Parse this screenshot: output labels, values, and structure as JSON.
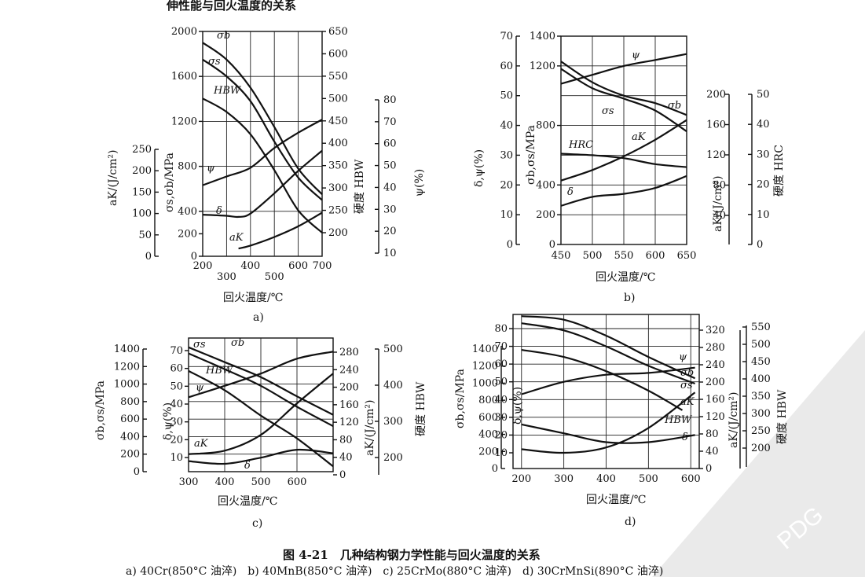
{
  "header": {
    "partial_title": "伸性能与回火温度的关系"
  },
  "caption": {
    "title": "图 4-21　几种结构钢力学性能与回火温度的关系",
    "subtitle": "a) 40Cr(850°C 油淬)　b) 40MnB(850°C 油淬)　c) 25CrMo(880°C 油淬)　d) 30CrMnSi(890°C 油淬)"
  },
  "watermark": {
    "text": "PDG"
  },
  "chart_data": [
    {
      "id": "a",
      "type": "line",
      "sublabel": "a)",
      "xlabel": "回火温度/℃",
      "xlim": [
        200,
        700
      ],
      "xticks_row1": [
        "200",
        "400",
        "600",
        "700"
      ],
      "xticks_row2": [
        "300",
        "500"
      ],
      "axes": [
        {
          "label": "σs,σb/MPa",
          "ticks": [
            "0",
            "200",
            "400",
            "800",
            "1200",
            "1600",
            "2000"
          ]
        },
        {
          "label": "aK/(J/cm²)",
          "ticks": [
            "0",
            "50",
            "100",
            "150",
            "200",
            "250"
          ]
        },
        {
          "label": "硬度 HBW",
          "ticks": [
            "200",
            "250",
            "300",
            "350",
            "400",
            "450",
            "500",
            "550",
            "600",
            "650"
          ]
        },
        {
          "label": "ψ(%)",
          "ticks": [
            "10",
            "20",
            "30",
            "40",
            "50",
            "60",
            "70",
            "80"
          ]
        }
      ],
      "series": [
        {
          "name": "σb",
          "axis": "MPa",
          "x": [
            200,
            300,
            400,
            500,
            600,
            700
          ],
          "y": [
            1900,
            1750,
            1500,
            1150,
            780,
            550
          ]
        },
        {
          "name": "σs",
          "axis": "MPa",
          "x": [
            200,
            300,
            400,
            500,
            600,
            700
          ],
          "y": [
            1750,
            1600,
            1380,
            1020,
            700,
            500
          ]
        },
        {
          "name": "HBW",
          "axis": "HBW",
          "x": [
            200,
            300,
            400,
            500,
            600,
            700
          ],
          "y": [
            500,
            470,
            420,
            340,
            250,
            200
          ]
        },
        {
          "name": "ψ",
          "axis": "psi",
          "x": [
            200,
            300,
            400,
            500,
            600,
            700
          ],
          "y": [
            41,
            45,
            49,
            58,
            65,
            71
          ]
        },
        {
          "name": "δ",
          "axis": "MPa",
          "x": [
            200,
            300,
            350,
            400,
            500,
            600,
            700
          ],
          "y": [
            370,
            360,
            350,
            380,
            560,
            760,
            940
          ]
        },
        {
          "name": "aK",
          "axis": "aK",
          "x": [
            350,
            400,
            500,
            600,
            700
          ],
          "y": [
            18,
            25,
            45,
            70,
            102
          ]
        }
      ]
    },
    {
      "id": "b",
      "type": "line",
      "sublabel": "b)",
      "xlabel": "回火温度/℃",
      "xlim": [
        450,
        650
      ],
      "xticks": [
        "450",
        "500",
        "550",
        "600",
        "650"
      ],
      "axes": [
        {
          "label": "δ,ψ(%)",
          "ticks": [
            "0",
            "10",
            "20",
            "30",
            "40",
            "50",
            "60",
            "70"
          ]
        },
        {
          "label": "σb,σs/MPa",
          "ticks": [
            "0",
            "200",
            "400",
            "800",
            "1200",
            "1400"
          ]
        },
        {
          "label": "aK/(J/cm²)",
          "ticks": [
            "40",
            "80",
            "120",
            "160",
            "200"
          ]
        },
        {
          "label": "硬度 HRC",
          "ticks": [
            "0",
            "10",
            "20",
            "30",
            "40",
            "50"
          ]
        }
      ],
      "series": [
        {
          "name": "ψ",
          "axis": "pct",
          "x": [
            450,
            500,
            550,
            600,
            650
          ],
          "y": [
            54,
            57,
            60,
            62,
            64
          ]
        },
        {
          "name": "σs",
          "axis": "MPa",
          "x": [
            450,
            500,
            550,
            600,
            650
          ],
          "y": [
            1180,
            1050,
            980,
            900,
            760
          ]
        },
        {
          "name": "σb",
          "axis": "MPa",
          "x": [
            450,
            500,
            550,
            600,
            650
          ],
          "y": [
            1230,
            1090,
            1000,
            950,
            870
          ]
        },
        {
          "name": "aK",
          "axis": "aK",
          "x": [
            450,
            500,
            550,
            600,
            650
          ],
          "y": [
            86,
            100,
            118,
            140,
            166
          ]
        },
        {
          "name": "HRC",
          "axis": "pct",
          "x": [
            450,
            500,
            550,
            600,
            650
          ],
          "y": [
            30.5,
            30,
            29,
            27,
            26
          ]
        },
        {
          "name": "δ",
          "axis": "pct",
          "x": [
            450,
            500,
            550,
            600,
            650
          ],
          "y": [
            13,
            16,
            17,
            19,
            23
          ]
        }
      ]
    },
    {
      "id": "c",
      "type": "line",
      "sublabel": "c)",
      "xlabel": "回火温度/℃",
      "xlim": [
        300,
        700
      ],
      "xticks": [
        "300",
        "400",
        "500",
        "600"
      ],
      "axes": [
        {
          "label": "σb,σs/MPa",
          "ticks": [
            "0",
            "200",
            "400",
            "600",
            "800",
            "1000",
            "1200",
            "1400"
          ]
        },
        {
          "label": "δ,ψ(%)",
          "ticks": [
            "10",
            "20",
            "30",
            "40",
            "50",
            "60",
            "70"
          ]
        },
        {
          "label": "aK/(J/cm²)",
          "ticks": [
            "0",
            "40",
            "80",
            "120",
            "160",
            "200",
            "240",
            "280"
          ]
        },
        {
          "label": "硬度 HBW",
          "ticks": [
            "200",
            "300",
            "400",
            "500"
          ]
        }
      ],
      "series": [
        {
          "name": "σs",
          "axis": "MPa",
          "x": [
            300,
            400,
            500,
            600,
            700
          ],
          "y": [
            1350,
            1170,
            980,
            740,
            520
          ]
        },
        {
          "name": "σb",
          "axis": "MPa",
          "x": [
            300,
            400,
            500,
            600,
            700
          ],
          "y": [
            1420,
            1250,
            1080,
            860,
            650
          ]
        },
        {
          "name": "HBW",
          "axis": "MPa",
          "x": [
            300,
            400,
            500,
            600,
            700
          ],
          "y": [
            1150,
            930,
            640,
            380,
            60
          ]
        },
        {
          "name": "ψ",
          "axis": "MPa",
          "x": [
            300,
            400,
            500,
            600,
            700
          ],
          "y": [
            850,
            980,
            1120,
            1290,
            1370
          ]
        },
        {
          "name": "aK",
          "axis": "MPa",
          "x": [
            300,
            400,
            500,
            600,
            700
          ],
          "y": [
            200,
            240,
            420,
            780,
            1120
          ]
        },
        {
          "name": "δ",
          "axis": "MPa",
          "x": [
            300,
            400,
            500,
            600,
            700
          ],
          "y": [
            120,
            90,
            160,
            250,
            210
          ]
        }
      ]
    },
    {
      "id": "d",
      "type": "line",
      "sublabel": "d)",
      "xlabel": "回火温度/℃",
      "xlim": [
        200,
        620
      ],
      "xticks": [
        "200",
        "300",
        "400",
        "500",
        "600"
      ],
      "axes": [
        {
          "label": "σb,σs/MPa",
          "ticks": [
            "0",
            "200",
            "400",
            "600",
            "800",
            "1000",
            "1200",
            "1400"
          ]
        },
        {
          "label": "δ,ψ(%)",
          "ticks": [
            "10",
            "20",
            "30",
            "40",
            "50",
            "60",
            "70",
            "80"
          ]
        },
        {
          "label": "aK/(J/cm²)",
          "ticks": [
            "0",
            "40",
            "80",
            "120",
            "160",
            "200",
            "240",
            "280",
            "320"
          ]
        },
        {
          "label": "硬度 HBW",
          "ticks": [
            "200",
            "250",
            "300",
            "350",
            "400",
            "450",
            "500",
            "550"
          ]
        }
      ],
      "series": [
        {
          "name": "σb",
          "axis": "pct",
          "x": [
            200,
            300,
            400,
            500,
            610
          ],
          "y": [
            87,
            85,
            76,
            64,
            52
          ]
        },
        {
          "name": "σs",
          "axis": "pct",
          "x": [
            200,
            300,
            400,
            500,
            610
          ],
          "y": [
            83,
            79,
            70,
            59,
            49
          ]
        },
        {
          "name": "HBW",
          "axis": "pct",
          "x": [
            200,
            300,
            400,
            500,
            580
          ],
          "y": [
            68,
            64,
            56,
            45,
            34
          ]
        },
        {
          "name": "ψ",
          "axis": "pct",
          "x": [
            200,
            300,
            400,
            500,
            610
          ],
          "y": [
            43,
            50,
            54,
            55,
            58
          ]
        },
        {
          "name": "aK",
          "axis": "pct",
          "x": [
            200,
            300,
            400,
            500,
            610
          ],
          "y": [
            12,
            10,
            13,
            24,
            44
          ]
        },
        {
          "name": "δ",
          "axis": "pct",
          "x": [
            200,
            300,
            400,
            500,
            610
          ],
          "y": [
            26,
            21,
            16,
            16,
            20
          ]
        }
      ]
    }
  ]
}
